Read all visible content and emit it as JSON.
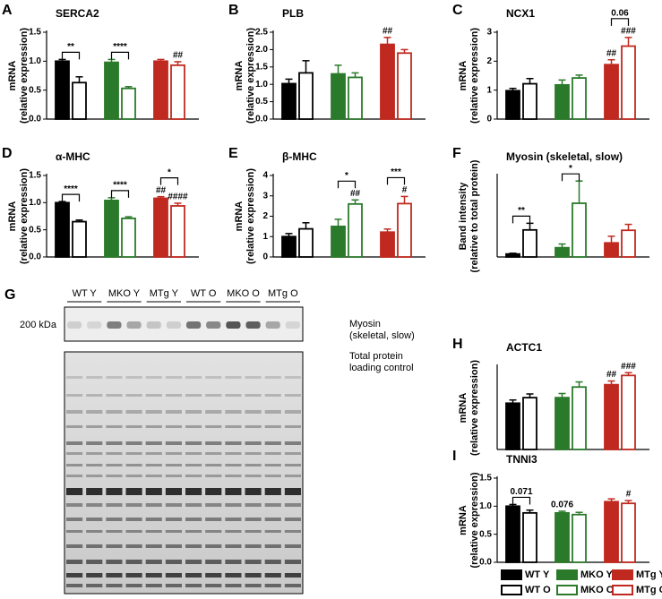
{
  "chart_data": [
    {
      "type": "bar",
      "panel": "A",
      "title": "SERCA2",
      "ylabel": [
        "mRNA",
        "(relative expression)"
      ],
      "values": [
        1.0,
        0.63,
        0.98,
        0.53,
        1.0,
        0.93
      ],
      "errors": [
        0.03,
        0.1,
        0.05,
        0.03,
        0.03,
        0.06
      ],
      "bar_labels": [
        null,
        null,
        null,
        null,
        null,
        "##"
      ],
      "pair_labels": [
        "**",
        "****",
        null
      ],
      "ylim": [
        0,
        1.5
      ],
      "yticks": [
        {
          "value": 0,
          "label": "0.0"
        },
        0.5,
        {
          "value": 1,
          "label": "1.0"
        },
        1.5
      ]
    },
    {
      "type": "bar",
      "panel": "B",
      "title": "PLB",
      "ylabel": [
        "mRNA",
        "(relative expression)"
      ],
      "values": [
        1.02,
        1.33,
        1.3,
        1.2,
        2.15,
        1.9
      ],
      "errors": [
        0.13,
        0.35,
        0.25,
        0.13,
        0.2,
        0.1
      ],
      "bar_labels": [
        null,
        null,
        null,
        null,
        "##",
        null
      ],
      "pair_labels": [
        null,
        null,
        null
      ],
      "ylim": [
        0,
        2.5
      ],
      "yticks": [
        {
          "value": 0,
          "label": "0.0"
        },
        0.5,
        {
          "value": 1,
          "label": "1.0"
        },
        1.5,
        {
          "value": 2,
          "label": "2.0"
        },
        2.5
      ]
    },
    {
      "type": "bar",
      "panel": "C",
      "title": "NCX1",
      "ylabel": [
        "mRNA",
        "(relative expression)"
      ],
      "values": [
        0.98,
        1.22,
        1.18,
        1.42,
        1.88,
        2.52
      ],
      "errors": [
        0.08,
        0.18,
        0.17,
        0.1,
        0.17,
        0.3
      ],
      "bar_labels": [
        null,
        null,
        null,
        null,
        "##",
        "###"
      ],
      "pair_labels": [
        null,
        null,
        "0.06"
      ],
      "ylim": [
        0,
        3
      ],
      "yticks": [
        0,
        1,
        2,
        3
      ]
    },
    {
      "type": "bar",
      "panel": "D",
      "title": "α-MHC",
      "ylabel": [
        "mRNA",
        "(relative expression)"
      ],
      "values": [
        1.0,
        0.65,
        1.04,
        0.71,
        1.08,
        0.94
      ],
      "errors": [
        0.02,
        0.03,
        0.05,
        0.03,
        0.03,
        0.05
      ],
      "bar_labels": [
        null,
        null,
        null,
        null,
        "##",
        "####"
      ],
      "pair_labels": [
        "****",
        "****",
        "*"
      ],
      "ylim": [
        0,
        1.5
      ],
      "yticks": [
        {
          "value": 0,
          "label": "0.0"
        },
        0.5,
        {
          "value": 1,
          "label": "1.0"
        },
        1.5
      ]
    },
    {
      "type": "bar",
      "panel": "E",
      "title": "β-MHC",
      "ylabel": [
        "mRNA",
        "(relative expression)"
      ],
      "values": [
        1.0,
        1.38,
        1.5,
        2.6,
        1.22,
        2.62
      ],
      "errors": [
        0.15,
        0.3,
        0.35,
        0.2,
        0.15,
        0.35
      ],
      "bar_labels": [
        null,
        null,
        null,
        "##",
        null,
        "#"
      ],
      "pair_labels": [
        null,
        "*",
        "***"
      ],
      "ylim": [
        0,
        4
      ],
      "yticks": [
        0,
        1,
        2,
        3,
        4
      ]
    },
    {
      "type": "bar",
      "panel": "F",
      "title": "Myosin (skeletal, slow)",
      "ylabel": [
        "Band intensity",
        "(relative to total protein)"
      ],
      "values": [
        0.8,
        7.3,
        2.5,
        14.5,
        3.8,
        7.2
      ],
      "errors": [
        0.2,
        1.8,
        1.0,
        6.0,
        1.8,
        1.6
      ],
      "bar_labels": [
        null,
        null,
        null,
        null,
        null,
        null
      ],
      "pair_labels": [
        "**",
        "*",
        null
      ],
      "ylim": [
        0,
        22
      ]
    },
    {
      "type": "bar",
      "panel": "H",
      "title": "ACTC1",
      "ylabel": [
        "mRNA",
        "(relative expression)"
      ],
      "values": [
        1.0,
        1.12,
        1.12,
        1.35,
        1.4,
        1.6
      ],
      "errors": [
        0.07,
        0.08,
        0.09,
        0.11,
        0.08,
        0.06
      ],
      "bar_labels": [
        null,
        null,
        null,
        null,
        "##",
        "###"
      ],
      "pair_labels": [
        null,
        null,
        null
      ],
      "ylim": [
        0,
        1.8
      ]
    },
    {
      "type": "bar",
      "panel": "I",
      "title": "TNNI3",
      "ylabel": [
        "mRNA",
        "(relative expression)"
      ],
      "values": [
        1.0,
        0.88,
        0.88,
        0.85,
        1.08,
        1.05
      ],
      "errors": [
        0.03,
        0.05,
        0.03,
        0.04,
        0.05,
        0.05
      ],
      "bar_labels": [
        null,
        null,
        "0.076",
        null,
        null,
        "#"
      ],
      "pair_labels": [
        "0.071",
        null,
        null
      ],
      "ylim": [
        0,
        1.5
      ],
      "yticks": [
        {
          "value": 0,
          "label": "0.0"
        },
        0.5,
        {
          "value": 1,
          "label": "1.0"
        },
        1.5
      ]
    }
  ],
  "legend": [
    {
      "name": "WT Y",
      "color": "#000000",
      "filled": true
    },
    {
      "name": "WT O",
      "color": "#000000",
      "filled": false
    },
    {
      "name": "MKO Y",
      "color": "#2b7a2b",
      "filled": true
    },
    {
      "name": "MKO O",
      "color": "#2b7a2b",
      "filled": false
    },
    {
      "name": "MTg Y",
      "color": "#c0291f",
      "filled": true
    },
    {
      "name": "MTg O",
      "color": "#c0291f",
      "filled": false
    }
  ],
  "blot": {
    "panel": "G",
    "lanes": [
      "WT Y",
      "MKO Y",
      "MTg Y",
      "WT O",
      "MKO O",
      "MTg O"
    ],
    "marker": "200 kDa",
    "band_label": [
      "Myosin",
      "(skeletal, slow)"
    ],
    "loading_label": [
      "Total protein",
      "loading control"
    ]
  }
}
